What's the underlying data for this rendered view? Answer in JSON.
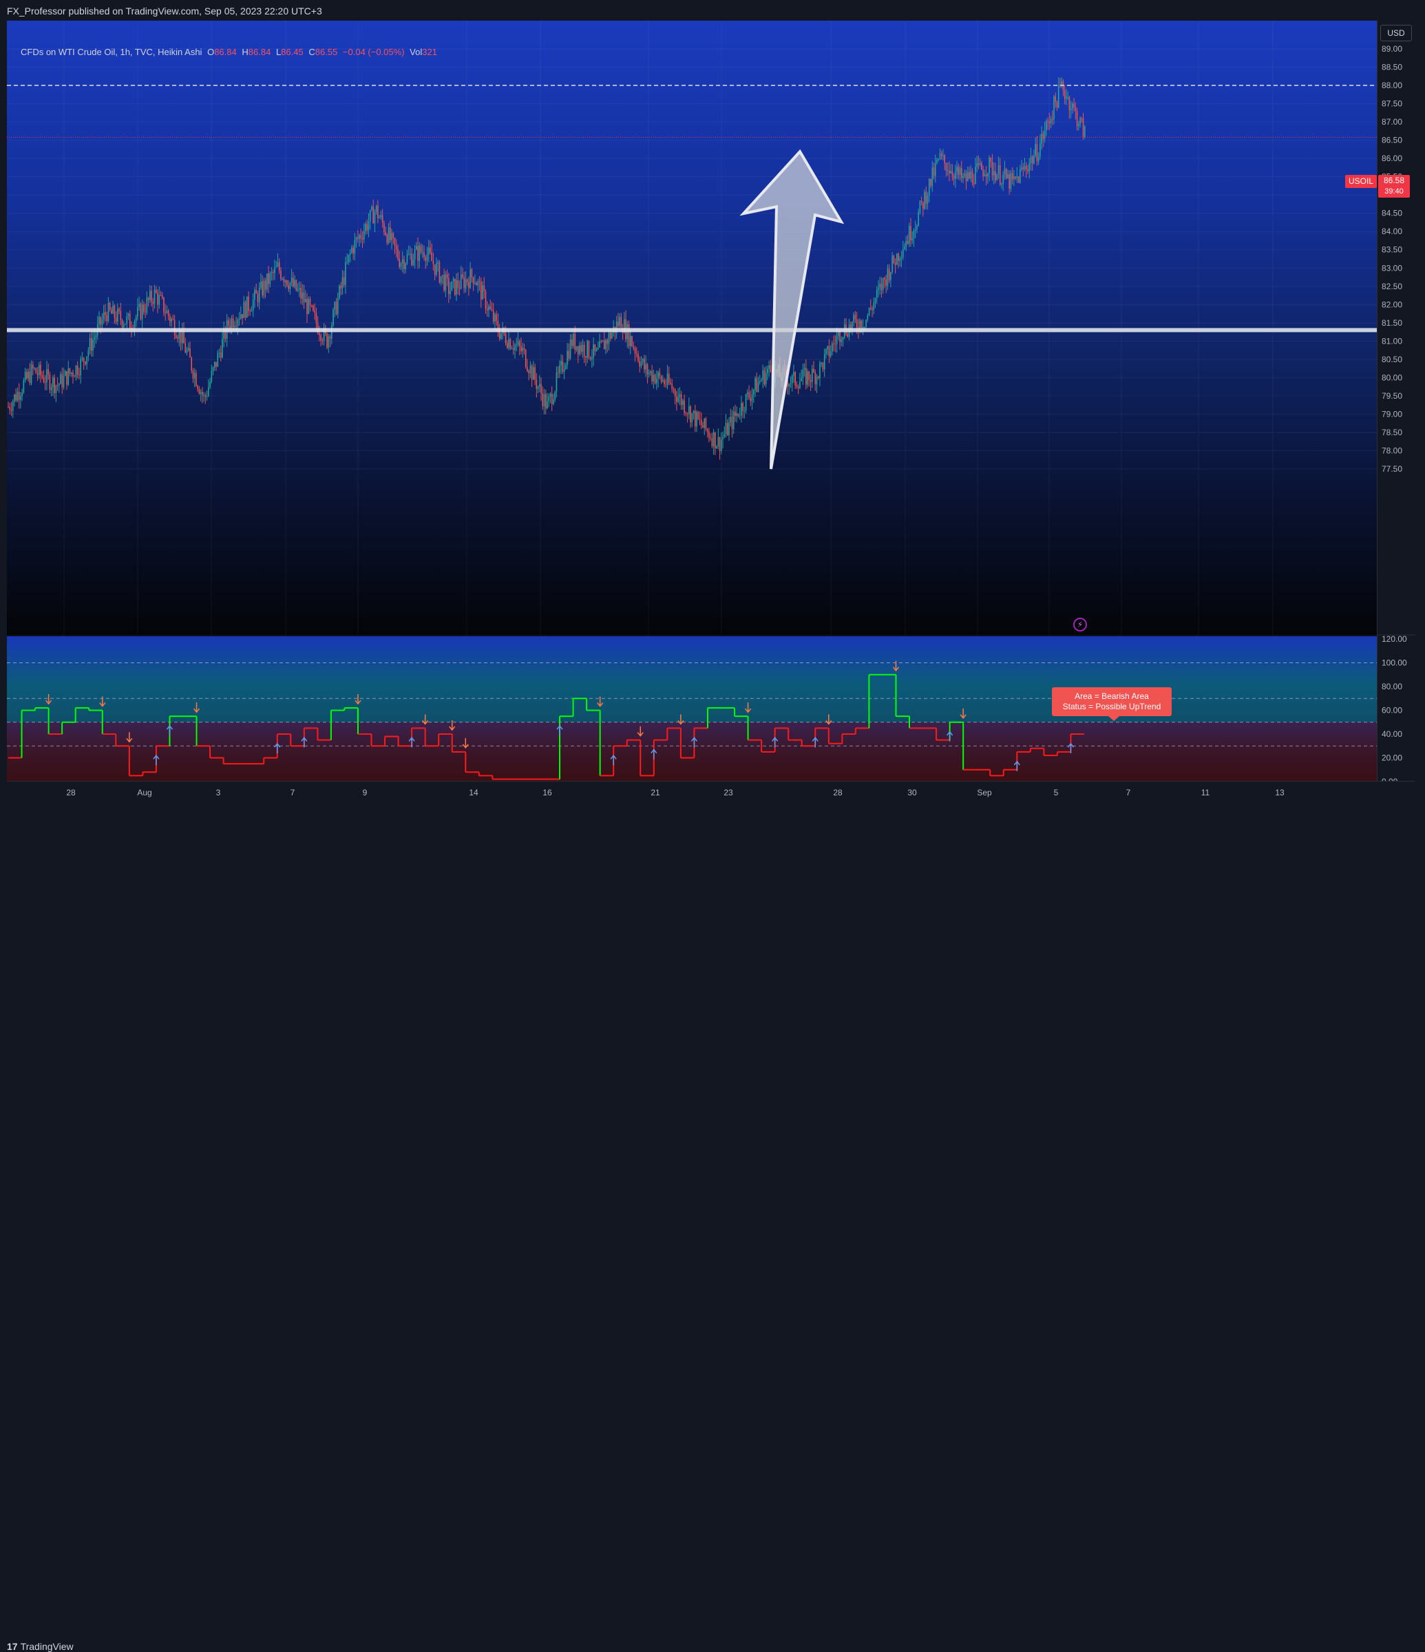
{
  "header": {
    "published_text": "FX_Professor published on TradingView.com, Sep 05, 2023 22:20 UTC+3"
  },
  "legend": {
    "symbol_text": "CFDs on WTI Crude Oil, 1h, TVC, Heikin Ashi",
    "open_label": "O",
    "open_value": "86.84",
    "high_label": "H",
    "high_value": "86.84",
    "low_label": "L",
    "low_value": "86.45",
    "close_label": "C",
    "close_value": "86.55",
    "change_value": "−0.04 (−0.05%)",
    "vol_label": "Vol",
    "vol_value": "321"
  },
  "price_scale": {
    "currency_button": "USD",
    "symbol_badge": "USOIL",
    "last_price": "86.58",
    "countdown": "39:40",
    "ticks": [
      "89.00",
      "88.50",
      "88.00",
      "87.50",
      "87.00",
      "86.50",
      "86.00",
      "85.50",
      "85.00",
      "84.50",
      "84.00",
      "83.50",
      "83.00",
      "82.50",
      "82.00",
      "81.50",
      "81.00",
      "80.50",
      "80.00",
      "79.50",
      "79.00",
      "78.50",
      "78.00",
      "77.50"
    ]
  },
  "indicator_scale": {
    "ticks": [
      "120.00",
      "100.00",
      "80.00",
      "60.00",
      "40.00",
      "20.00",
      "0.00"
    ]
  },
  "time_scale": {
    "labels": [
      "28",
      "Aug",
      "3",
      "7",
      "9",
      "14",
      "16",
      "21",
      "23",
      "28",
      "30",
      "Sep",
      "5",
      "7",
      "11",
      "13"
    ]
  },
  "callout": {
    "line1": "Area = Bearish Area",
    "line2": "Status =  Possible UpTrend"
  },
  "footer": {
    "brand": "TradingView",
    "brand_mark": "17"
  },
  "colors": {
    "up_candle": "#26a69a",
    "down_candle": "#ef5350",
    "support_line": "#e0e3eb",
    "indicator_green": "#00ff00",
    "indicator_red": "#ff1a1a",
    "badge_red": "#f23645"
  },
  "chart_data": {
    "type": "candlestick",
    "price_range": [
      77.5,
      89.0
    ],
    "support_level": 81.3,
    "resistance_level": 88.0,
    "last_price_level": 86.58,
    "x_labels": [
      "28",
      "Aug",
      "3",
      "7",
      "9",
      "14",
      "16",
      "21",
      "23",
      "28",
      "30",
      "Sep",
      "5",
      "7",
      "11",
      "13"
    ],
    "price_path": [
      79.2,
      80.2,
      79.8,
      80.4,
      81.8,
      81.5,
      82.3,
      81.2,
      79.4,
      81.5,
      82.1,
      83.0,
      82.2,
      81.0,
      83.5,
      84.6,
      83.2,
      83.5,
      82.4,
      82.8,
      81.3,
      80.7,
      79.2,
      81.0,
      80.6,
      81.6,
      80.2,
      79.8,
      78.9,
      78.2,
      79.3,
      80.2,
      79.9,
      80.1,
      81.3,
      81.6,
      83.0,
      84.2,
      86.0,
      85.4,
      85.8,
      85.3,
      86.2,
      88.0,
      86.6
    ],
    "indicator": {
      "range": [
        0,
        120
      ],
      "levels": [
        100,
        70,
        50,
        30,
        0
      ],
      "values": [
        20,
        60,
        62,
        40,
        50,
        62,
        60,
        40,
        30,
        5,
        8,
        30,
        55,
        55,
        30,
        20,
        15,
        15,
        15,
        20,
        40,
        30,
        45,
        35,
        60,
        62,
        40,
        30,
        38,
        30,
        45,
        30,
        40,
        25,
        8,
        5,
        2,
        2,
        2,
        2,
        2,
        55,
        70,
        60,
        5,
        30,
        35,
        5,
        35,
        45,
        20,
        45,
        62,
        62,
        55,
        35,
        25,
        45,
        35,
        30,
        45,
        32,
        40,
        45,
        90,
        90,
        55,
        45,
        45,
        35,
        50,
        10,
        10,
        5,
        10,
        25,
        28,
        22,
        25,
        40
      ]
    },
    "arrow_annotation": {
      "from": 77.5,
      "to": 86.0
    }
  }
}
